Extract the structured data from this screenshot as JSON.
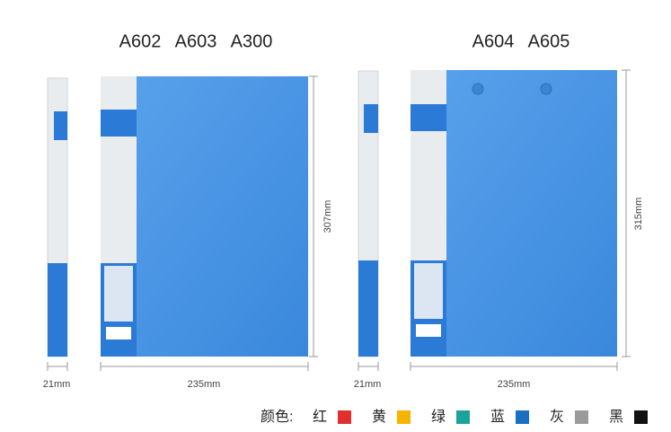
{
  "groups": [
    {
      "models": [
        "A602",
        "A603",
        "A300"
      ],
      "spine_width": "21mm",
      "width": "235mm",
      "height": "307mm"
    },
    {
      "models": [
        "A604",
        "A605"
      ],
      "spine_width": "21mm",
      "width": "235mm",
      "height": "315mm"
    }
  ],
  "colors": {
    "label": "颜色:",
    "items": [
      {
        "name": "红",
        "color": "#e0302e"
      },
      {
        "name": "黄",
        "color": "#f5b400"
      },
      {
        "name": "绿",
        "color": "#1aa39b"
      },
      {
        "name": "蓝",
        "color": "#1a70c0"
      },
      {
        "name": "灰",
        "color": "#9a9a9a"
      },
      {
        "name": "黑",
        "color": "#111111"
      }
    ]
  }
}
